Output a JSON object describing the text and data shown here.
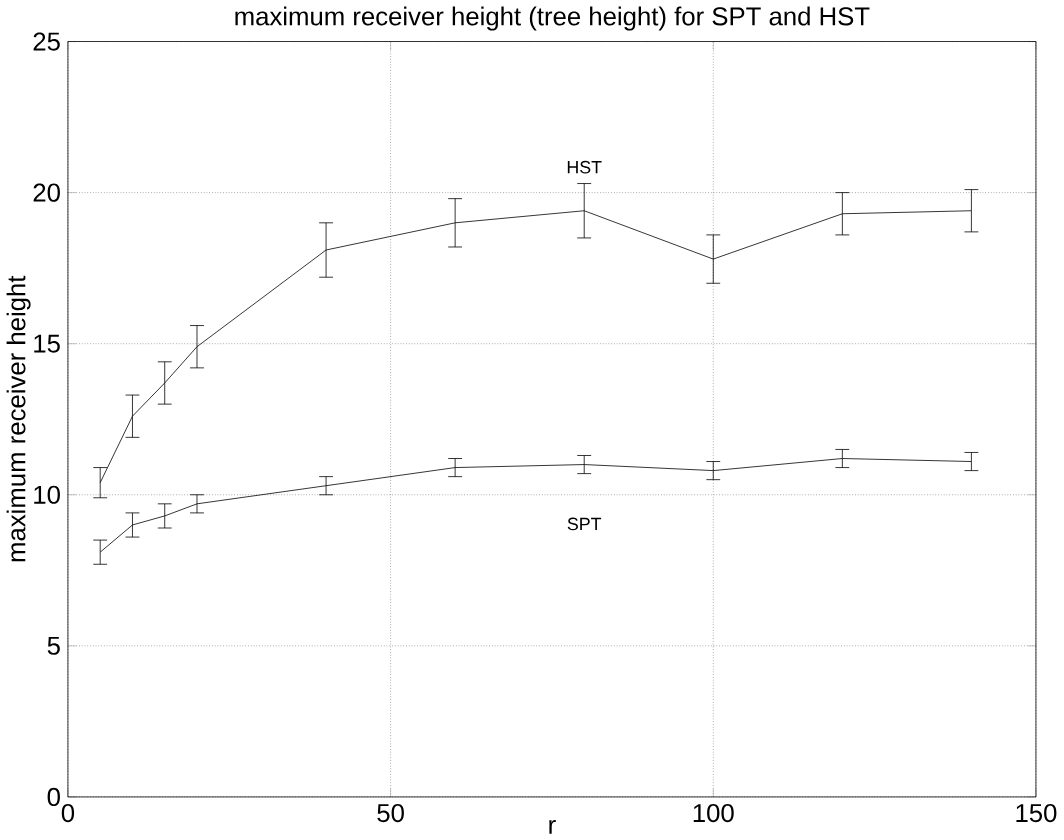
{
  "chart_data": {
    "type": "line",
    "title": "maximum receiver height (tree height) for SPT and HST",
    "xlabel": "r",
    "ylabel": "maximum receiver height",
    "x": [
      5,
      10,
      15,
      20,
      40,
      60,
      80,
      100,
      120,
      140
    ],
    "series": [
      {
        "name": "HST",
        "color": "#000000",
        "values": [
          10.4,
          12.6,
          13.7,
          14.9,
          18.1,
          19.0,
          19.4,
          17.8,
          19.3,
          19.4
        ],
        "errors": [
          0.5,
          0.7,
          0.7,
          0.7,
          0.9,
          0.8,
          0.9,
          0.8,
          0.7,
          0.7
        ]
      },
      {
        "name": "SPT",
        "color": "#000000",
        "values": [
          8.1,
          9.0,
          9.3,
          9.7,
          10.3,
          10.9,
          11.0,
          10.8,
          11.2,
          11.1
        ],
        "errors": [
          0.4,
          0.4,
          0.4,
          0.3,
          0.3,
          0.3,
          0.3,
          0.3,
          0.3,
          0.3
        ]
      }
    ],
    "xlim": [
      0,
      150
    ],
    "ylim": [
      0,
      25
    ],
    "xticks": [
      0,
      50,
      100,
      150
    ],
    "yticks": [
      0,
      5,
      10,
      15,
      20,
      25
    ],
    "grid": true,
    "marker": "none",
    "line_style": "solid"
  }
}
